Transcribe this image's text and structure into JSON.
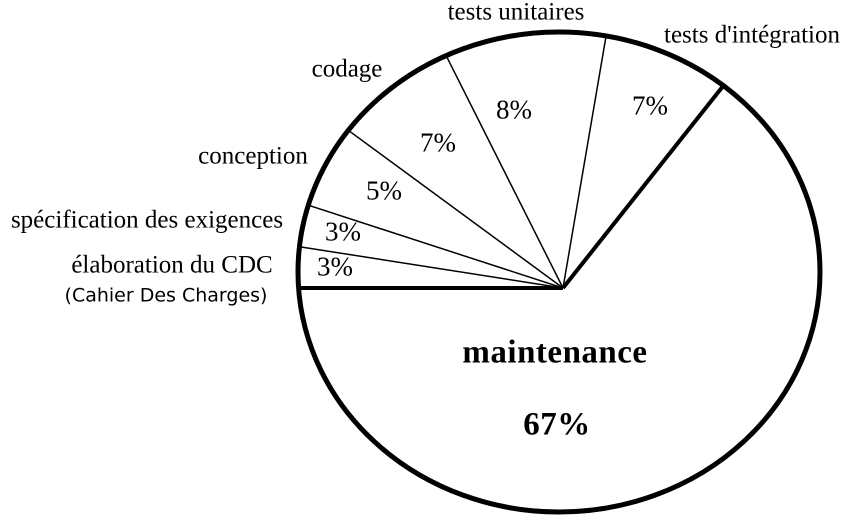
{
  "chart_data": {
    "type": "pie",
    "unit": "%",
    "start_angle_deg": 180,
    "direction": "clockwise",
    "legend": "none",
    "label_placement": {
      "categories": "outside",
      "values": "inside"
    },
    "slices": [
      {
        "label": "élaboration du CDC",
        "sublabel": "(Cahier Des Charges)",
        "value": 3,
        "value_label": "3%"
      },
      {
        "label": "spécification des exigences",
        "value": 3,
        "value_label": "3%"
      },
      {
        "label": "conception",
        "value": 5,
        "value_label": "5%"
      },
      {
        "label": "codage",
        "value": 7,
        "value_label": "7%"
      },
      {
        "label": "tests unitaires",
        "value": 8,
        "value_label": "8%"
      },
      {
        "label": "tests d'intégration",
        "value": 7,
        "value_label": "7%"
      },
      {
        "label": "maintenance",
        "value": 67,
        "value_label": "67%"
      }
    ],
    "colors": {
      "ink": "#000000",
      "background": "#ffffff"
    }
  }
}
